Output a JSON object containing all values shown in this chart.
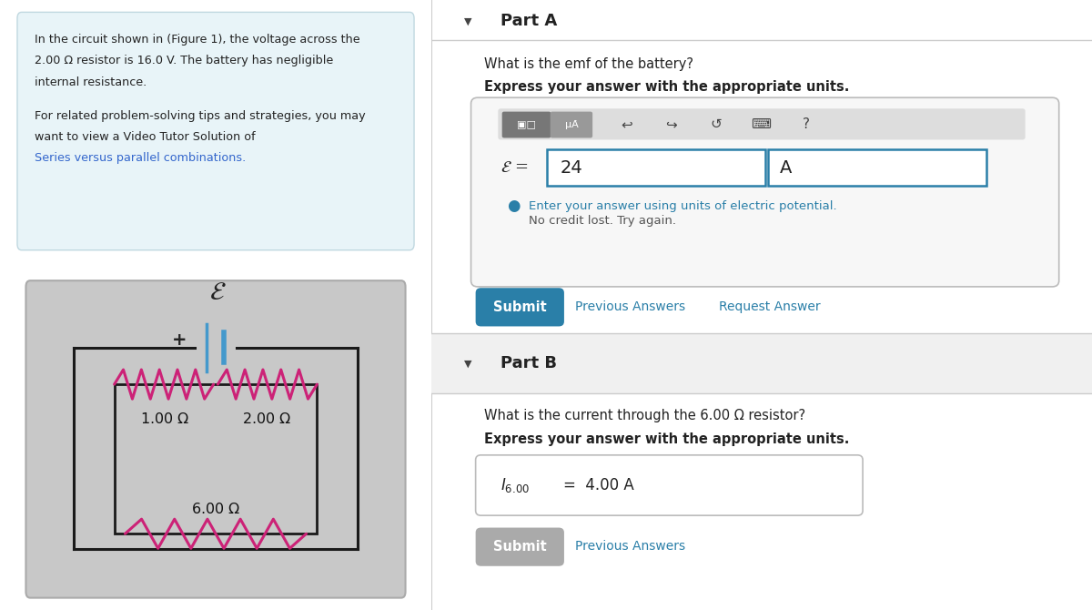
{
  "bg_color": "#ffffff",
  "left_panel_bg": "#e8f4f8",
  "left_panel_border": "#c0d8e0",
  "circuit_bg": "#c8c8c8",
  "circuit_rect_color": "#1a1a1a",
  "resistor_color": "#cc2277",
  "battery_color": "#4499cc",
  "divider_color": "#cccccc",
  "part_b_bg": "#f0f0f0",
  "teal_color": "#2a7fa8",
  "submit_color": "#2a7fa8",
  "submit_disabled": "#aaaaaa",
  "input_border": "#2a7fa8",
  "error_color": "#2a7fa8",
  "partA_title": "Part A",
  "partA_question": "What is the emf of the battery?",
  "partA_instruction": "Express your answer with the appropriate units.",
  "partA_answer_val": "24",
  "partA_answer_unit": "A",
  "partA_error_blue": "Enter your answer using units of electric potential.",
  "partA_error_gray": "No credit lost. Try again.",
  "partB_title": "Part B",
  "partB_question": "What is the current through the 6.00 Ω resistor?",
  "partB_instruction": "Express your answer with the appropriate units.",
  "r1_label": "1.00 Ω",
  "r2_label": "2.00 Ω",
  "r3_label": "6.00 Ω"
}
